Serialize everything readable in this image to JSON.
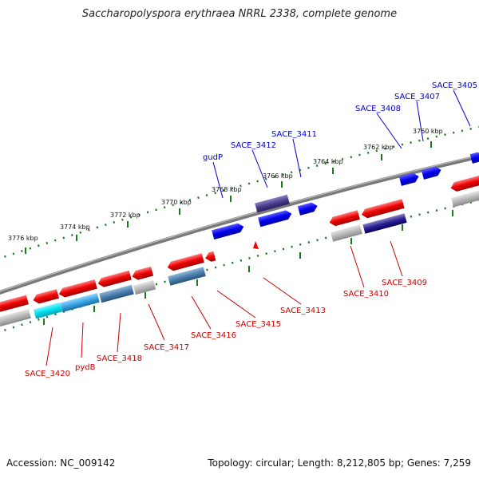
{
  "title": "Saccharopolyspora erythraea NRRL 2338, complete genome",
  "footer": {
    "accession": "Accession: NC_009142",
    "summary": "Topology: circular; Length: 8,212,805 bp; Genes: 7,259"
  },
  "scale_labels": [
    "3776 kbp",
    "3774 kbp",
    "3772 kbp",
    "3770 kbp",
    "3768 kbp",
    "3766 kbp",
    "3764 kbp",
    "3762 kbp",
    "3760 kbp"
  ],
  "gene_labels_top": [
    "gudP",
    "SACE_3412",
    "SACE_3411",
    "SACE_3408",
    "SACE_3407",
    "SACE_3405"
  ],
  "gene_labels_bottom": [
    "SACE_3420",
    "pydB",
    "SACE_3418",
    "SACE_3417",
    "SACE_3416",
    "SACE_3415",
    "SACE_3413",
    "SACE_3410",
    "SACE_3409"
  ],
  "colors": {
    "forward_gene": "#0000ee",
    "reverse_gene": "#ee0000",
    "label_top": "#0000cc",
    "label_bottom": "#cc0000",
    "scale_ticks": "#1a7a1a",
    "backbone": "#7a7a7a"
  }
}
